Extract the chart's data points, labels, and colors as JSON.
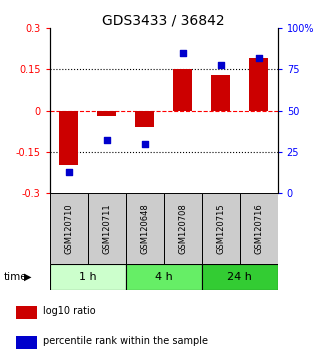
{
  "title": "GDS3433 / 36842",
  "samples": [
    "GSM120710",
    "GSM120711",
    "GSM120648",
    "GSM120708",
    "GSM120715",
    "GSM120716"
  ],
  "log10_ratio": [
    -0.2,
    -0.02,
    -0.06,
    0.15,
    0.13,
    0.19
  ],
  "percentile_rank": [
    13,
    32,
    30,
    85,
    78,
    82
  ],
  "time_groups": [
    {
      "label": "1 h",
      "start": 0,
      "end": 2,
      "color": "#ccffcc"
    },
    {
      "label": "4 h",
      "start": 2,
      "end": 4,
      "color": "#66ee66"
    },
    {
      "label": "24 h",
      "start": 4,
      "end": 6,
      "color": "#33cc33"
    }
  ],
  "bar_color": "#cc0000",
  "dot_color": "#0000cc",
  "ylim_left": [
    -0.3,
    0.3
  ],
  "ylim_right": [
    0,
    100
  ],
  "yticks_left": [
    -0.3,
    -0.15,
    0,
    0.15,
    0.3
  ],
  "yticks_left_labels": [
    "-0.3",
    "-0.15",
    "0",
    "0.15",
    "0.3"
  ],
  "yticks_right": [
    0,
    25,
    50,
    75,
    100
  ],
  "yticks_right_labels": [
    "0",
    "25",
    "50",
    "75",
    "100%"
  ],
  "hlines": [
    -0.15,
    0,
    0.15
  ],
  "hline_styles": [
    "dotted",
    "dashed",
    "dotted"
  ],
  "hline_colors": [
    "black",
    "red",
    "black"
  ],
  "sample_box_color": "#cccccc",
  "title_fontsize": 10,
  "tick_fontsize": 7,
  "legend_fontsize": 7,
  "sample_fontsize": 6
}
